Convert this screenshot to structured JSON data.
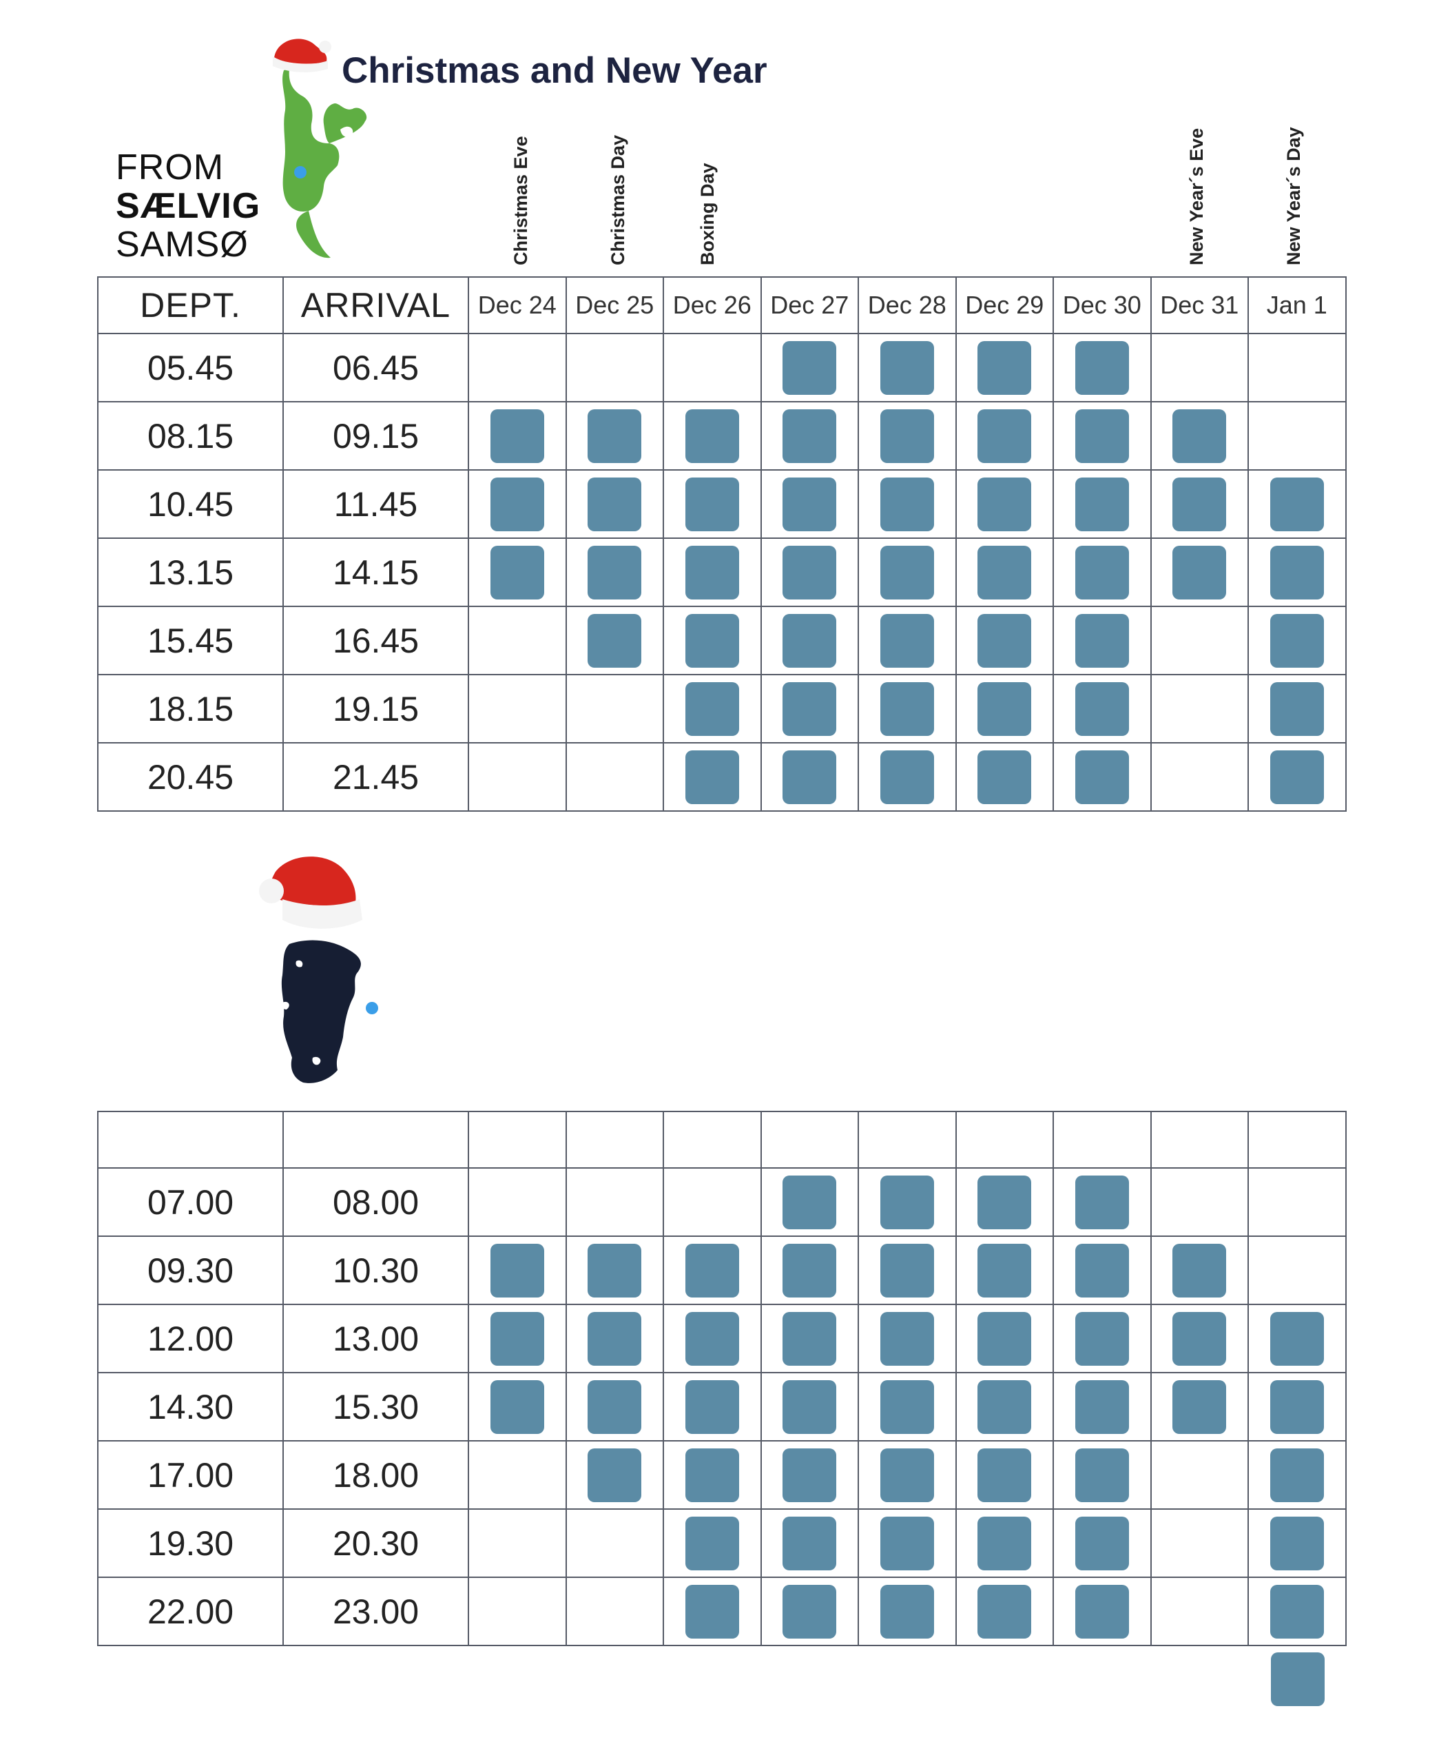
{
  "header": {
    "title": "Christmas and New Year",
    "from_line1": "FROM",
    "from_line2": "SÆLVIG",
    "from_line3": "SAMSØ"
  },
  "holidays": [
    {
      "label": "Christmas Eve",
      "day_index": 0
    },
    {
      "label": "Christmas Day",
      "day_index": 1
    },
    {
      "label": "Boxing Day",
      "day_index": 2
    },
    {
      "label": "New Year´s Eve",
      "day_index": 7
    },
    {
      "label": "New Year´s Day",
      "day_index": 8
    }
  ],
  "colors": {
    "departure_mark": "#5b8ba5",
    "samso_map": "#5fae43",
    "lower_map": "#161e33",
    "pin": "#3a9ee8",
    "santa_hat": "#d7261e"
  },
  "days": [
    "Dec 24",
    "Dec 25",
    "Dec 26",
    "Dec 27",
    "Dec 28",
    "Dec 29",
    "Dec 30",
    "Dec 31",
    "Jan 1"
  ],
  "table1": {
    "dept_label": "DEPT.",
    "arrival_label": "ARRIVAL",
    "rows": [
      {
        "dept": "05.45",
        "arr": "06.45",
        "sailings": [
          0,
          0,
          0,
          1,
          1,
          1,
          1,
          0,
          0
        ]
      },
      {
        "dept": "08.15",
        "arr": "09.15",
        "sailings": [
          1,
          1,
          1,
          1,
          1,
          1,
          1,
          1,
          0
        ]
      },
      {
        "dept": "10.45",
        "arr": "11.45",
        "sailings": [
          1,
          1,
          1,
          1,
          1,
          1,
          1,
          1,
          1
        ]
      },
      {
        "dept": "13.15",
        "arr": "14.15",
        "sailings": [
          1,
          1,
          1,
          1,
          1,
          1,
          1,
          1,
          1
        ]
      },
      {
        "dept": "15.45",
        "arr": "16.45",
        "sailings": [
          0,
          1,
          1,
          1,
          1,
          1,
          1,
          0,
          1
        ]
      },
      {
        "dept": "18.15",
        "arr": "19.15",
        "sailings": [
          0,
          0,
          1,
          1,
          1,
          1,
          1,
          0,
          1
        ]
      },
      {
        "dept": "20.45",
        "arr": "21.45",
        "sailings": [
          0,
          0,
          1,
          1,
          1,
          1,
          1,
          0,
          1
        ]
      }
    ]
  },
  "table2": {
    "rows": [
      {
        "dept": "07.00",
        "arr": "08.00",
        "sailings": [
          0,
          0,
          0,
          1,
          1,
          1,
          1,
          0,
          0
        ]
      },
      {
        "dept": "09.30",
        "arr": "10.30",
        "sailings": [
          1,
          1,
          1,
          1,
          1,
          1,
          1,
          1,
          0
        ]
      },
      {
        "dept": "12.00",
        "arr": "13.00",
        "sailings": [
          1,
          1,
          1,
          1,
          1,
          1,
          1,
          1,
          1
        ]
      },
      {
        "dept": "14.30",
        "arr": "15.30",
        "sailings": [
          1,
          1,
          1,
          1,
          1,
          1,
          1,
          1,
          1
        ]
      },
      {
        "dept": "17.00",
        "arr": "18.00",
        "sailings": [
          0,
          1,
          1,
          1,
          1,
          1,
          1,
          0,
          1
        ]
      },
      {
        "dept": "19.30",
        "arr": "20.30",
        "sailings": [
          0,
          0,
          1,
          1,
          1,
          1,
          1,
          0,
          1
        ]
      },
      {
        "dept": "22.00",
        "arr": "23.00",
        "sailings": [
          0,
          0,
          1,
          1,
          1,
          1,
          1,
          0,
          1
        ]
      }
    ],
    "extra_sailing_after_table": {
      "day_index": 8
    }
  }
}
